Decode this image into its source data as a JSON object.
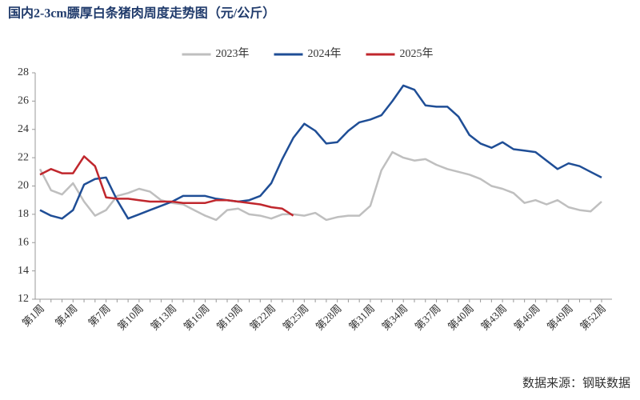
{
  "chart_data": {
    "type": "line",
    "title": "国内2-3cm膘厚白条猪肉周度走势图（元/公斤）",
    "source": "数据来源：钢联数据",
    "categories": [
      "第1周",
      null,
      null,
      "第4周",
      null,
      null,
      "第7周",
      null,
      null,
      "第10周",
      null,
      null,
      "第13周",
      null,
      null,
      "第16周",
      null,
      null,
      "第19周",
      null,
      null,
      "第22周",
      null,
      null,
      "第25周",
      null,
      null,
      "第28周",
      null,
      null,
      "第31周",
      null,
      null,
      "第34周",
      null,
      null,
      "第37周",
      null,
      null,
      "第40周",
      null,
      null,
      "第43周",
      null,
      null,
      "第46周",
      null,
      null,
      "第49周",
      null,
      null,
      "第52周"
    ],
    "ylim": [
      12,
      28
    ],
    "yticks": [
      12,
      14,
      16,
      18,
      20,
      22,
      24,
      26,
      28
    ],
    "legend": "top",
    "series": [
      {
        "name": "2023年",
        "color": "#bfbfbf",
        "values": [
          21.2,
          19.7,
          19.4,
          20.2,
          18.9,
          17.9,
          18.3,
          19.3,
          19.5,
          19.8,
          19.6,
          19.0,
          18.8,
          18.7,
          18.3,
          17.9,
          17.6,
          18.3,
          18.4,
          18.0,
          17.9,
          17.7,
          18.0,
          18.0,
          17.9,
          18.1,
          17.6,
          17.8,
          17.9,
          17.9,
          18.6,
          21.1,
          22.4,
          22.0,
          21.8,
          21.9,
          21.5,
          21.2,
          21.0,
          20.8,
          20.5,
          20.0,
          19.8,
          19.5,
          18.8,
          19.0,
          18.7,
          19.0,
          18.5,
          18.3,
          18.2,
          18.9
        ]
      },
      {
        "name": "2024年",
        "color": "#1f4e96",
        "values": [
          18.3,
          17.9,
          17.7,
          18.3,
          20.1,
          20.5,
          20.6,
          19.0,
          17.7,
          18.0,
          18.3,
          18.6,
          18.9,
          19.3,
          19.3,
          19.3,
          19.1,
          19.0,
          18.9,
          19.0,
          19.3,
          20.2,
          21.9,
          23.4,
          24.4,
          23.9,
          23.0,
          23.1,
          23.9,
          24.5,
          24.7,
          25.0,
          26.0,
          27.1,
          26.8,
          25.7,
          25.6,
          25.6,
          24.9,
          23.6,
          23.0,
          22.7,
          23.1,
          22.6,
          22.5,
          22.4,
          21.8,
          21.2,
          21.6,
          21.4,
          21.0,
          20.6
        ]
      },
      {
        "name": "2025年",
        "color": "#c0272d",
        "values": [
          20.8,
          21.2,
          20.9,
          20.9,
          22.1,
          21.4,
          19.2,
          19.1,
          19.1,
          19.0,
          18.9,
          18.9,
          18.9,
          18.8,
          18.8,
          18.8,
          19.0,
          19.0,
          18.9,
          18.8,
          18.7,
          18.5,
          18.4,
          17.9,
          null,
          null,
          null,
          null,
          null,
          null,
          null,
          null,
          null,
          null,
          null,
          null,
          null,
          null,
          null,
          null,
          null,
          null,
          null,
          null,
          null,
          null,
          null,
          null,
          null,
          null,
          null,
          null
        ]
      }
    ]
  }
}
